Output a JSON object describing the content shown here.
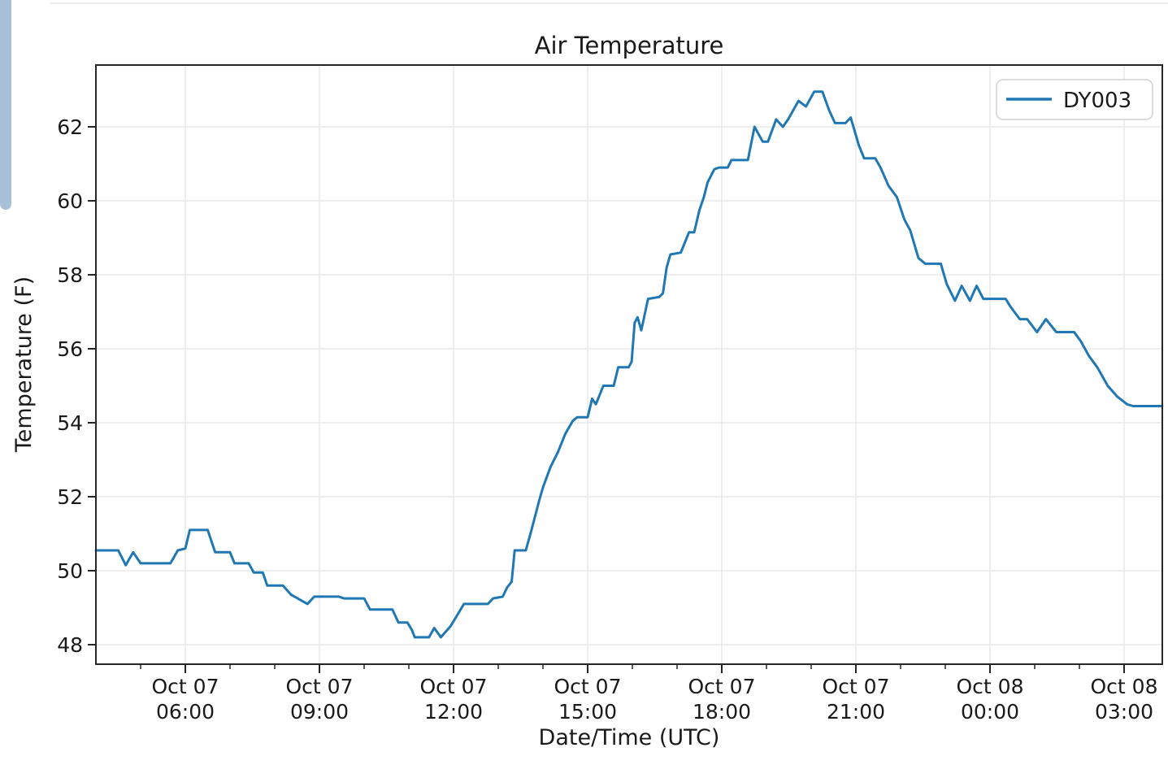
{
  "page": {
    "background_color": "#ffffff",
    "left_scrollbar_color": "#a7bfd9",
    "top_rule_color": "#ededed"
  },
  "chart": {
    "title": "Air Temperature",
    "xlabel": "Date/Time (UTC)",
    "ylabel": "Temperature (F)",
    "legend": {
      "label": "DY003",
      "line_color": "#1f77b4",
      "position": "upper right"
    },
    "colors": {
      "series_line": "#1f77b4",
      "spine": "#262626",
      "grid": "#e9e9e9",
      "tick": "#262626"
    }
  },
  "chart_data": {
    "type": "line",
    "title": "Air Temperature",
    "xlabel": "Date/Time (UTC)",
    "ylabel": "Temperature (F)",
    "x_unit": "minutes since Oct 07 04:00 UTC",
    "x_domain_minutes": [
      0,
      1431
    ],
    "x_domain_labels": [
      "Oct 07 04:00",
      "Oct 08 03:51"
    ],
    "ylim": [
      47.45,
      63.65
    ],
    "grid": true,
    "legend_position": "upper right",
    "y_ticks": [
      48,
      50,
      52,
      54,
      56,
      58,
      60,
      62
    ],
    "x_ticks": [
      {
        "t": 120,
        "line1": "Oct 07",
        "line2": "06:00"
      },
      {
        "t": 300,
        "line1": "Oct 07",
        "line2": "09:00"
      },
      {
        "t": 480,
        "line1": "Oct 07",
        "line2": "12:00"
      },
      {
        "t": 660,
        "line1": "Oct 07",
        "line2": "15:00"
      },
      {
        "t": 840,
        "line1": "Oct 07",
        "line2": "18:00"
      },
      {
        "t": 1020,
        "line1": "Oct 07",
        "line2": "21:00"
      },
      {
        "t": 1200,
        "line1": "Oct 08",
        "line2": "00:00"
      },
      {
        "t": 1380,
        "line1": "Oct 08",
        "line2": "03:00"
      }
    ],
    "x_minor_tick_interval_minutes": 60,
    "series": [
      {
        "name": "DY003",
        "color": "#1f77b4",
        "points_t_minutes_and_temp_f": [
          [
            0,
            50.55
          ],
          [
            30,
            50.55
          ],
          [
            40,
            50.15
          ],
          [
            50,
            50.5
          ],
          [
            60,
            50.2
          ],
          [
            100,
            50.2
          ],
          [
            110,
            50.55
          ],
          [
            120,
            50.6
          ],
          [
            126,
            51.1
          ],
          [
            150,
            51.1
          ],
          [
            160,
            50.5
          ],
          [
            180,
            50.5
          ],
          [
            186,
            50.2
          ],
          [
            205,
            50.2
          ],
          [
            212,
            49.95
          ],
          [
            224,
            49.95
          ],
          [
            230,
            49.6
          ],
          [
            251,
            49.6
          ],
          [
            262,
            49.35
          ],
          [
            284,
            49.1
          ],
          [
            293,
            49.3
          ],
          [
            326,
            49.3
          ],
          [
            333,
            49.25
          ],
          [
            360,
            49.25
          ],
          [
            368,
            48.95
          ],
          [
            398,
            48.95
          ],
          [
            406,
            48.6
          ],
          [
            418,
            48.6
          ],
          [
            424,
            48.4
          ],
          [
            428,
            48.2
          ],
          [
            447,
            48.2
          ],
          [
            454,
            48.45
          ],
          [
            463,
            48.2
          ],
          [
            476,
            48.5
          ],
          [
            494,
            49.1
          ],
          [
            526,
            49.1
          ],
          [
            533,
            49.25
          ],
          [
            546,
            49.3
          ],
          [
            552,
            49.55
          ],
          [
            558,
            49.7
          ],
          [
            562,
            50.55
          ],
          [
            577,
            50.55
          ],
          [
            584,
            51.05
          ],
          [
            595,
            51.9
          ],
          [
            600,
            52.25
          ],
          [
            610,
            52.8
          ],
          [
            620,
            53.2
          ],
          [
            630,
            53.7
          ],
          [
            640,
            54.05
          ],
          [
            646,
            54.15
          ],
          [
            660,
            54.15
          ],
          [
            666,
            54.65
          ],
          [
            671,
            54.5
          ],
          [
            681,
            55.0
          ],
          [
            695,
            55.0
          ],
          [
            701,
            55.5
          ],
          [
            715,
            55.5
          ],
          [
            719,
            55.65
          ],
          [
            723,
            56.7
          ],
          [
            727,
            56.85
          ],
          [
            732,
            56.5
          ],
          [
            741,
            57.35
          ],
          [
            756,
            57.4
          ],
          [
            761,
            57.5
          ],
          [
            766,
            58.2
          ],
          [
            771,
            58.55
          ],
          [
            785,
            58.6
          ],
          [
            790,
            58.85
          ],
          [
            796,
            59.15
          ],
          [
            803,
            59.15
          ],
          [
            810,
            59.75
          ],
          [
            816,
            60.1
          ],
          [
            821,
            60.5
          ],
          [
            830,
            60.85
          ],
          [
            836,
            60.9
          ],
          [
            848,
            60.9
          ],
          [
            853,
            61.1
          ],
          [
            875,
            61.1
          ],
          [
            884,
            62.0
          ],
          [
            895,
            61.6
          ],
          [
            902,
            61.6
          ],
          [
            913,
            62.2
          ],
          [
            922,
            62.0
          ],
          [
            929,
            62.2
          ],
          [
            943,
            62.7
          ],
          [
            953,
            62.55
          ],
          [
            964,
            62.95
          ],
          [
            975,
            62.95
          ],
          [
            984,
            62.45
          ],
          [
            992,
            62.1
          ],
          [
            1006,
            62.1
          ],
          [
            1013,
            62.25
          ],
          [
            1024,
            61.5
          ],
          [
            1031,
            61.15
          ],
          [
            1046,
            61.15
          ],
          [
            1053,
            60.9
          ],
          [
            1064,
            60.4
          ],
          [
            1075,
            60.1
          ],
          [
            1085,
            59.5
          ],
          [
            1093,
            59.2
          ],
          [
            1104,
            58.45
          ],
          [
            1113,
            58.3
          ],
          [
            1134,
            58.3
          ],
          [
            1142,
            57.75
          ],
          [
            1153,
            57.3
          ],
          [
            1162,
            57.7
          ],
          [
            1173,
            57.3
          ],
          [
            1182,
            57.7
          ],
          [
            1191,
            57.35
          ],
          [
            1221,
            57.35
          ],
          [
            1227,
            57.15
          ],
          [
            1240,
            56.8
          ],
          [
            1250,
            56.8
          ],
          [
            1263,
            56.45
          ],
          [
            1275,
            56.8
          ],
          [
            1289,
            56.45
          ],
          [
            1313,
            56.45
          ],
          [
            1322,
            56.2
          ],
          [
            1333,
            55.8
          ],
          [
            1344,
            55.5
          ],
          [
            1358,
            55.0
          ],
          [
            1371,
            54.7
          ],
          [
            1384,
            54.5
          ],
          [
            1392,
            54.45
          ],
          [
            1431,
            54.45
          ]
        ]
      }
    ]
  }
}
